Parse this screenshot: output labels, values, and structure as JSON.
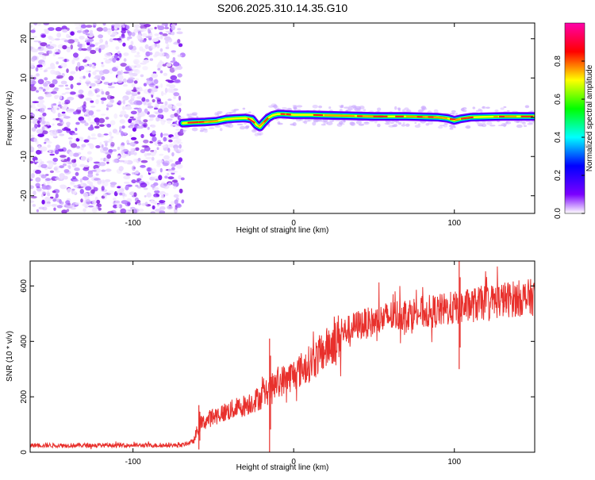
{
  "title": "S206.2025.310.14.35.G10",
  "chart_data": [
    {
      "type": "heatmap",
      "title": "S206.2025.310.14.35.G10",
      "xlabel": "Height of straight line (km)",
      "ylabel": "Frequency (Hz)",
      "xlim": [
        -164,
        150
      ],
      "ylim": [
        -24.5,
        24
      ],
      "x_ticks": [
        -100,
        0,
        100
      ],
      "y_ticks": [
        -20,
        -10,
        0,
        10,
        20
      ],
      "x_tick_labels": [
        "-100",
        "0",
        "100"
      ],
      "y_tick_labels": [
        "-20",
        "-10",
        "0",
        "10",
        "20"
      ],
      "noise_region_x": [
        -164,
        -69
      ],
      "signal_track": {
        "x": [
          -69,
          -62,
          -55,
          -48,
          -42,
          -36,
          -30,
          -26,
          -23,
          -21,
          -19,
          -16,
          -13,
          -10,
          -6,
          0,
          10,
          20,
          30,
          40,
          50,
          60,
          70,
          80,
          90,
          96,
          100,
          104,
          110,
          120,
          130,
          140,
          150
        ],
        "y": [
          -1.5,
          -1.3,
          -1.2,
          -1.0,
          -0.5,
          -0.3,
          -0.2,
          -0.5,
          -2.0,
          -2.5,
          -1.5,
          -0.2,
          0.5,
          0.8,
          0.8,
          0.6,
          0.6,
          0.5,
          0.4,
          0.3,
          0.2,
          0.2,
          0.2,
          0.1,
          0.0,
          -0.3,
          -0.8,
          -0.4,
          0.0,
          0.1,
          0.2,
          0.2,
          0.2
        ]
      },
      "colorbar": {
        "label": "Normalized spectral amplitude",
        "range": [
          0,
          1
        ],
        "ticks": [
          0.0,
          0.2,
          0.4,
          0.6,
          0.8
        ],
        "tick_labels": [
          "0.0",
          "0.2",
          "0.4",
          "0.6",
          "0.8"
        ],
        "colors": [
          "#ffffff",
          "#7b00ff",
          "#0000ff",
          "#00ffff",
          "#00ff00",
          "#ffff00",
          "#ff0000",
          "#ff00aa"
        ]
      }
    },
    {
      "type": "line",
      "xlabel": "Height of straight line (km)",
      "ylabel": "SNR (10 * v/v)",
      "xlim": [
        -164,
        150
      ],
      "ylim": [
        0,
        690
      ],
      "x_ticks": [
        -100,
        0,
        100
      ],
      "y_ticks": [
        0,
        200,
        400,
        600
      ],
      "x_tick_labels": [
        "-100",
        "0",
        "100"
      ],
      "y_tick_labels": [
        "0",
        "200",
        "400",
        "600"
      ],
      "color": "#e8302c",
      "x": [
        -164,
        -150,
        -130,
        -110,
        -90,
        -70,
        -62,
        -60,
        -58,
        -50,
        -40,
        -30,
        -20,
        -10,
        0,
        10,
        20,
        30,
        40,
        50,
        60,
        70,
        80,
        90,
        100,
        110,
        120,
        130,
        140,
        150
      ],
      "y": [
        25,
        25,
        25,
        25,
        25,
        25,
        40,
        80,
        100,
        130,
        150,
        170,
        200,
        250,
        280,
        320,
        370,
        430,
        460,
        470,
        490,
        500,
        505,
        510,
        520,
        530,
        540,
        550,
        555,
        560
      ],
      "spikes": [
        {
          "x": -59,
          "low": 10,
          "high": 170
        },
        {
          "x": -15,
          "low": 0,
          "high": 410
        },
        {
          "x": 103,
          "low": 300,
          "high": 690
        }
      ]
    }
  ]
}
